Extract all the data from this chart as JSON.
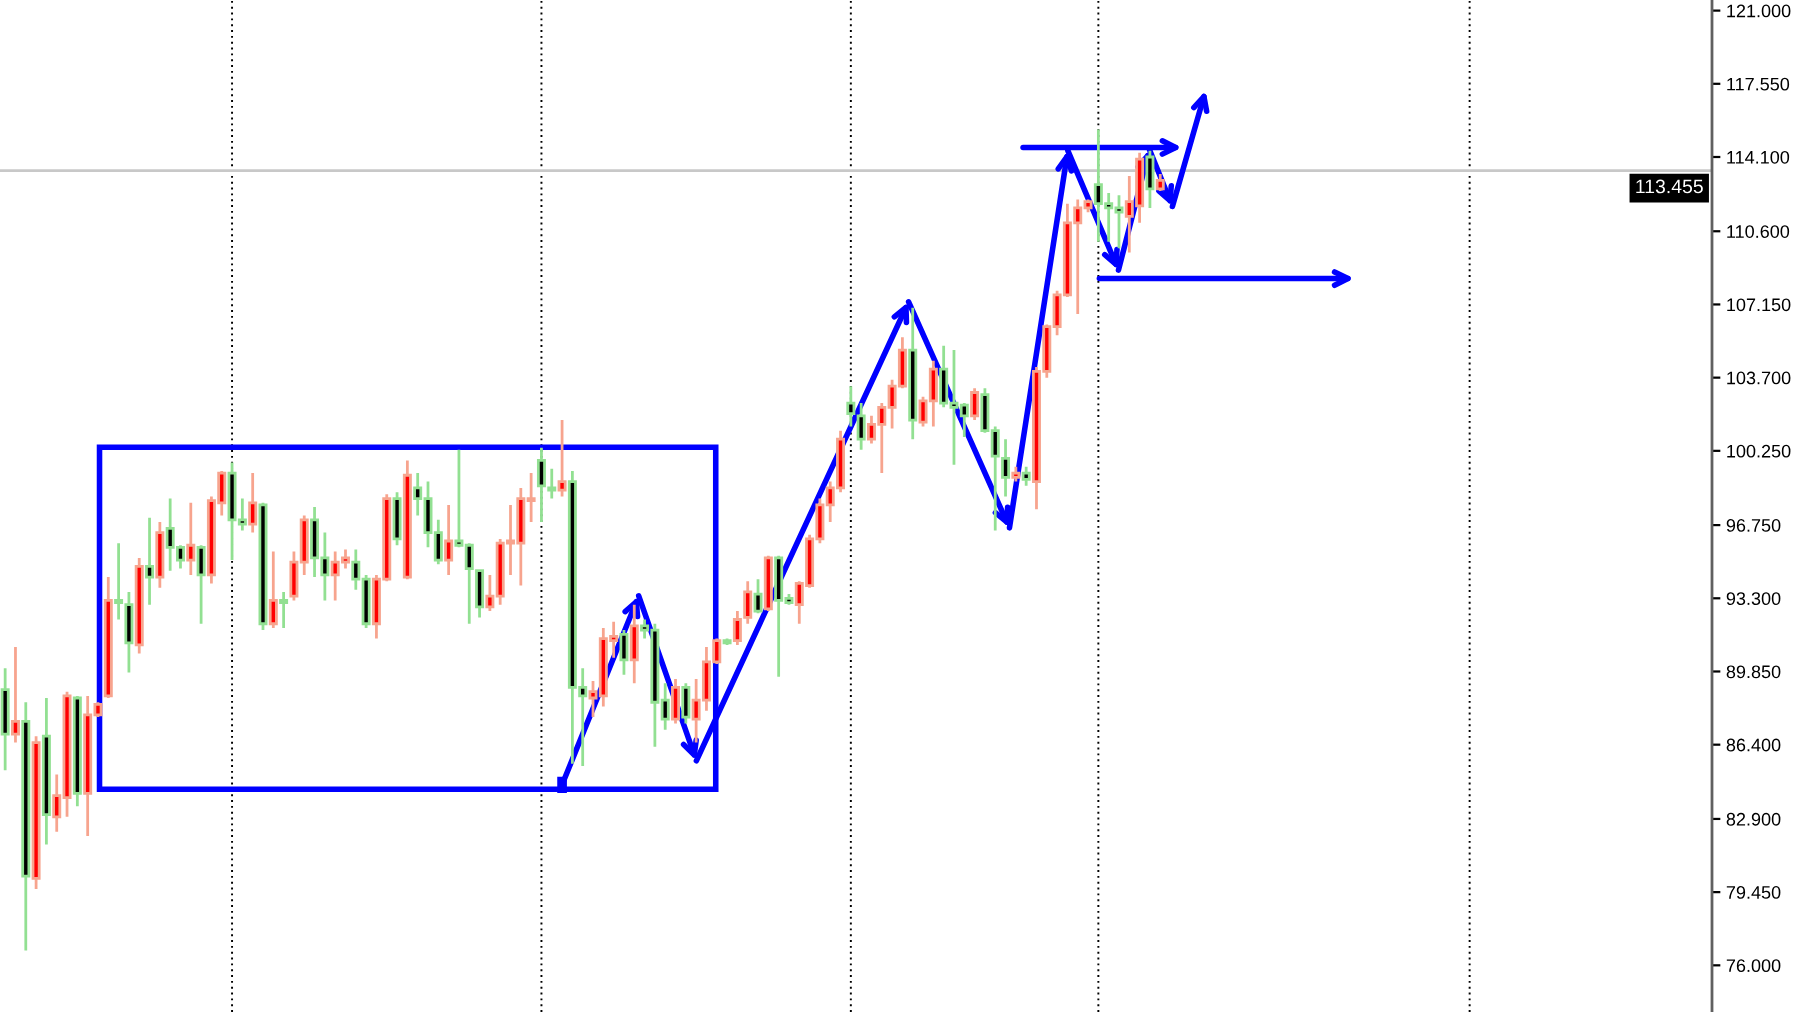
{
  "chart_data": {
    "type": "candlestick",
    "categories": [
      null,
      null,
      null,
      null,
      null,
      null,
      null,
      null,
      null,
      null,
      null,
      null,
      null,
      null,
      null,
      null,
      null,
      null,
      null,
      null,
      null,
      null,
      null,
      null,
      null,
      null,
      null,
      null,
      null,
      null,
      null,
      null,
      null,
      null,
      null,
      null,
      null,
      null,
      null,
      null,
      null,
      null,
      null,
      null,
      null,
      null,
      null,
      null,
      null,
      null,
      null,
      null,
      null,
      null,
      null,
      null,
      null,
      null,
      null,
      null,
      null,
      null,
      null,
      null,
      null,
      null,
      null,
      null,
      null,
      null,
      null,
      null,
      null,
      null,
      null,
      null,
      null,
      null,
      null,
      null,
      null,
      null,
      null,
      null,
      null,
      null,
      null,
      null,
      null,
      null,
      null,
      null,
      null,
      null,
      null,
      null,
      null,
      null,
      null,
      null,
      null,
      null,
      null,
      null,
      null,
      null,
      null,
      null,
      null,
      null,
      null,
      null,
      null,
      null,
      null,
      null,
      null,
      null,
      null,
      null,
      null,
      null,
      null,
      null,
      null,
      null,
      null,
      null,
      null,
      null,
      null,
      null,
      null,
      null,
      null,
      null,
      null,
      null,
      null,
      null,
      null,
      null,
      null,
      null,
      null,
      null,
      null,
      null,
      null,
      null,
      null,
      null,
      null,
      null,
      null,
      null,
      null,
      null,
      null,
      null,
      null,
      null,
      null,
      null,
      null,
      null
    ],
    "ohlc": [
      [
        89.0,
        90.0,
        85.2,
        86.9
      ],
      [
        86.9,
        91.0,
        86.5,
        87.5
      ],
      [
        87.5,
        88.4,
        76.7,
        80.2
      ],
      [
        80.1,
        86.8,
        79.6,
        86.5
      ],
      [
        86.8,
        88.6,
        81.7,
        83.1
      ],
      [
        83.0,
        85.0,
        82.3,
        84.0
      ],
      [
        83.9,
        88.9,
        83.0,
        88.7
      ],
      [
        88.6,
        88.7,
        83.5,
        84.1
      ],
      [
        84.1,
        88.7,
        82.1,
        87.8
      ],
      [
        87.8,
        88.4,
        87.7,
        88.3
      ],
      [
        88.7,
        94.3,
        88.6,
        93.2
      ],
      [
        93.2,
        95.9,
        92.3,
        93.1
      ],
      [
        93.0,
        93.6,
        89.8,
        91.2
      ],
      [
        91.1,
        95.2,
        90.7,
        94.8
      ],
      [
        94.8,
        97.1,
        93.0,
        94.3
      ],
      [
        94.3,
        96.9,
        93.8,
        96.4
      ],
      [
        96.6,
        98.0,
        94.6,
        95.7
      ],
      [
        95.7,
        95.8,
        94.7,
        95.1
      ],
      [
        95.1,
        97.8,
        94.4,
        95.8
      ],
      [
        95.7,
        95.8,
        92.1,
        94.4
      ],
      [
        94.4,
        98.1,
        94.0,
        97.9
      ],
      [
        97.8,
        99.3,
        97.2,
        99.2
      ],
      [
        99.2,
        99.7,
        95.1,
        97.0
      ],
      [
        97.0,
        98.0,
        96.5,
        96.8
      ],
      [
        96.8,
        99.2,
        96.4,
        97.8
      ],
      [
        97.7,
        97.8,
        91.8,
        92.1
      ],
      [
        92.1,
        95.5,
        91.9,
        93.2
      ],
      [
        93.2,
        93.6,
        91.9,
        93.1
      ],
      [
        93.4,
        95.5,
        93.2,
        95.0
      ],
      [
        95.0,
        97.2,
        94.4,
        97.0
      ],
      [
        97.0,
        97.6,
        94.3,
        95.2
      ],
      [
        95.2,
        96.4,
        93.2,
        94.4
      ],
      [
        94.4,
        95.5,
        93.2,
        95.0
      ],
      [
        95.0,
        95.6,
        94.7,
        95.2
      ],
      [
        95.0,
        95.6,
        93.7,
        94.2
      ],
      [
        94.2,
        94.4,
        91.9,
        92.1
      ],
      [
        92.1,
        94.4,
        91.4,
        94.2
      ],
      [
        94.2,
        98.2,
        94.1,
        98.0
      ],
      [
        98.0,
        98.3,
        95.8,
        96.1
      ],
      [
        94.3,
        99.8,
        94.2,
        99.1
      ],
      [
        98.5,
        99.2,
        97.2,
        98.0
      ],
      [
        98.0,
        98.8,
        95.7,
        96.4
      ],
      [
        96.4,
        97.0,
        94.9,
        95.1
      ],
      [
        95.1,
        97.7,
        94.4,
        96.0
      ],
      [
        96.0,
        100.3,
        95.7,
        95.8
      ],
      [
        95.8,
        95.9,
        92.1,
        94.7
      ],
      [
        94.6,
        94.6,
        92.4,
        92.9
      ],
      [
        92.9,
        94.4,
        92.7,
        93.4
      ],
      [
        93.4,
        96.1,
        93.0,
        95.9
      ],
      [
        95.9,
        97.7,
        94.4,
        96.0
      ],
      [
        95.9,
        98.5,
        93.9,
        98.0
      ],
      [
        97.9,
        99.2,
        96.9,
        98.0
      ],
      [
        99.8,
        100.4,
        96.9,
        98.6
      ],
      [
        98.5,
        99.4,
        98.0,
        98.4
      ],
      [
        98.4,
        101.7,
        98.1,
        98.8
      ],
      [
        98.8,
        99.3,
        85.5,
        89.1
      ],
      [
        89.1,
        90.0,
        85.4,
        88.7
      ],
      [
        88.6,
        89.4,
        87.7,
        88.9
      ],
      [
        88.7,
        91.9,
        88.2,
        91.4
      ],
      [
        91.3,
        92.2,
        90.5,
        91.5
      ],
      [
        91.6,
        91.8,
        89.7,
        90.4
      ],
      [
        90.4,
        93.0,
        89.3,
        92.0
      ],
      [
        92.0,
        92.3,
        91.4,
        91.8
      ],
      [
        91.8,
        92.1,
        86.3,
        88.4
      ],
      [
        88.5,
        89.3,
        87.1,
        87.6
      ],
      [
        87.6,
        89.5,
        87.4,
        89.1
      ],
      [
        89.1,
        89.3,
        87.4,
        87.7
      ],
      [
        87.6,
        89.5,
        86.5,
        88.5
      ],
      [
        88.5,
        91.0,
        88.0,
        90.3
      ],
      [
        90.3,
        91.4,
        90.2,
        91.3
      ],
      [
        91.3,
        91.4,
        91.1,
        91.2
      ],
      [
        91.3,
        92.7,
        91.1,
        92.3
      ],
      [
        92.4,
        94.1,
        92.1,
        93.6
      ],
      [
        93.5,
        94.2,
        92.6,
        92.7
      ],
      [
        92.8,
        95.3,
        92.7,
        95.2
      ],
      [
        95.2,
        95.3,
        89.6,
        93.2
      ],
      [
        93.3,
        93.5,
        93.0,
        93.1
      ],
      [
        93.0,
        94.1,
        92.1,
        94.0
      ],
      [
        93.9,
        96.3,
        93.8,
        96.1
      ],
      [
        96.1,
        98.0,
        95.9,
        97.7
      ],
      [
        97.7,
        98.8,
        96.9,
        98.5
      ],
      [
        98.5,
        101.2,
        98.3,
        100.8
      ],
      [
        102.5,
        103.3,
        101.4,
        102.0
      ],
      [
        101.9,
        102.5,
        100.3,
        100.8
      ],
      [
        100.8,
        101.9,
        100.6,
        101.5
      ],
      [
        101.5,
        102.5,
        99.2,
        102.3
      ],
      [
        102.3,
        103.6,
        101.3,
        103.3
      ],
      [
        103.3,
        105.6,
        103.2,
        105.0
      ],
      [
        105.0,
        107.0,
        100.8,
        101.7
      ],
      [
        101.6,
        102.8,
        101.4,
        102.6
      ],
      [
        102.6,
        104.5,
        101.4,
        104.1
      ],
      [
        104.1,
        105.2,
        102.3,
        102.5
      ],
      [
        102.5,
        105.0,
        99.6,
        102.3
      ],
      [
        102.4,
        102.5,
        100.9,
        101.9
      ],
      [
        101.9,
        103.2,
        101.7,
        103.0
      ],
      [
        102.9,
        103.2,
        101.1,
        101.2
      ],
      [
        101.2,
        101.4,
        96.5,
        100.0
      ],
      [
        99.9,
        100.8,
        98.1,
        99.0
      ],
      [
        99.0,
        99.5,
        98.8,
        99.2
      ],
      [
        99.2,
        99.5,
        98.6,
        98.9
      ],
      [
        98.8,
        104.2,
        97.5,
        104.0
      ],
      [
        104.0,
        106.2,
        103.7,
        106.1
      ],
      [
        106.1,
        107.8,
        105.7,
        107.6
      ],
      [
        107.6,
        111.9,
        107.5,
        111.0
      ],
      [
        111.0,
        112.1,
        106.7,
        111.7
      ],
      [
        111.7,
        112.1,
        111.5,
        112.0
      ],
      [
        112.8,
        115.4,
        110.1,
        111.9
      ],
      [
        111.9,
        112.4,
        110.1,
        111.7
      ],
      [
        111.7,
        112.3,
        109.8,
        111.5
      ],
      [
        111.3,
        113.2,
        109.6,
        112.0
      ],
      [
        111.8,
        114.3,
        111.0,
        114.0
      ],
      [
        114.1,
        114.4,
        111.7,
        112.6
      ],
      [
        112.6,
        113.3,
        112.5,
        113.0
      ],
      null,
      null,
      null,
      null,
      null,
      null,
      null,
      null,
      null,
      null,
      null,
      null,
      null,
      null,
      null,
      null,
      null,
      null,
      null,
      null,
      null,
      null,
      null,
      null,
      null,
      null,
      null,
      null,
      null,
      null,
      null,
      null,
      null,
      null,
      null,
      null,
      null,
      null,
      null,
      null,
      null,
      null,
      null,
      null,
      null,
      null,
      null,
      null,
      null,
      null,
      null,
      null,
      null
    ],
    "colors": [
      "#000000",
      "#ff0000",
      "#000000",
      "#ff0000",
      "#000000",
      "#ff0000",
      "#ff0000",
      "#000000",
      "#ff0000",
      "#ff0000",
      "#ff0000",
      "#000000",
      "#000000",
      "#ff0000",
      "#000000",
      "#ff0000",
      "#000000",
      "#000000",
      "#ff0000",
      "#000000",
      "#ff0000",
      "#ff0000",
      "#000000",
      "#000000",
      "#ff0000",
      "#000000",
      "#ff0000",
      "#000000",
      "#ff0000",
      "#ff0000",
      "#000000",
      "#000000",
      "#ff0000",
      "#ff0000",
      "#000000",
      "#000000",
      "#ff0000",
      "#ff0000",
      "#000000",
      "#ff0000",
      "#000000",
      "#000000",
      "#000000",
      "#ff0000",
      "#000000",
      "#000000",
      "#000000",
      "#ff0000",
      "#ff0000",
      "#ff0000",
      "#ff0000",
      "#ff0000",
      "#000000",
      "#000000",
      "#ff0000",
      "#000000",
      "#000000",
      "#ff0000",
      "#ff0000",
      "#ff0000",
      "#000000",
      "#ff0000",
      "#000000",
      "#000000",
      "#000000",
      "#ff0000",
      "#000000",
      "#ff0000",
      "#ff0000",
      "#ff0000",
      "#000000",
      "#ff0000",
      "#ff0000",
      "#000000",
      "#ff0000",
      "#000000",
      "#000000",
      "#ff0000",
      "#ff0000",
      "#ff0000",
      "#ff0000",
      "#ff0000",
      "#000000",
      "#000000",
      "#ff0000",
      "#ff0000",
      "#ff0000",
      "#ff0000",
      "#000000",
      "#ff0000",
      "#ff0000",
      "#000000",
      "#000000",
      "#000000",
      "#ff0000",
      "#000000",
      "#000000",
      "#000000",
      "#ff0000",
      "#000000",
      "#ff0000",
      "#ff0000",
      "#ff0000",
      "#ff0000",
      "#ff0000",
      "#ff0000",
      "#000000",
      "#000000",
      "#000000",
      "#ff0000",
      "#ff0000",
      "#000000",
      "#ff0000",
      null,
      null,
      null,
      null,
      null,
      null,
      null,
      null,
      null,
      null,
      null,
      null,
      null,
      null,
      null,
      null,
      null,
      null,
      null,
      null,
      null,
      null,
      null,
      null,
      null,
      null,
      null,
      null,
      null,
      null,
      null,
      null,
      null,
      null,
      null,
      null,
      null,
      null,
      null,
      null,
      null,
      null,
      null,
      null,
      null,
      null,
      null,
      null,
      null,
      null,
      null,
      null,
      null
    ],
    "ylim": [
      73.8,
      121.5
    ],
    "yticks": [
      {
        "value": 76.0,
        "label": "76.000"
      },
      {
        "value": 79.45,
        "label": "79.450"
      },
      {
        "value": 82.9,
        "label": "82.900"
      },
      {
        "value": 86.4,
        "label": "86.400"
      },
      {
        "value": 89.85,
        "label": "89.850"
      },
      {
        "value": 93.3,
        "label": "93.300"
      },
      {
        "value": 96.75,
        "label": "96.750"
      },
      {
        "value": 100.25,
        "label": "100.250"
      },
      {
        "value": 103.7,
        "label": "103.700"
      },
      {
        "value": 107.15,
        "label": "107.150"
      },
      {
        "value": 110.6,
        "label": "110.600"
      },
      {
        "value": 114.1,
        "label": "114.100"
      },
      {
        "value": 117.55,
        "label": "117.550"
      },
      {
        "value": 121.0,
        "label": "121.000"
      }
    ],
    "ref_lines": [
      {
        "axis": "y",
        "value": 113.455,
        "label": "113.455",
        "color": "#c8c8c8"
      }
    ],
    "tick_labels": "y"
  }
}
